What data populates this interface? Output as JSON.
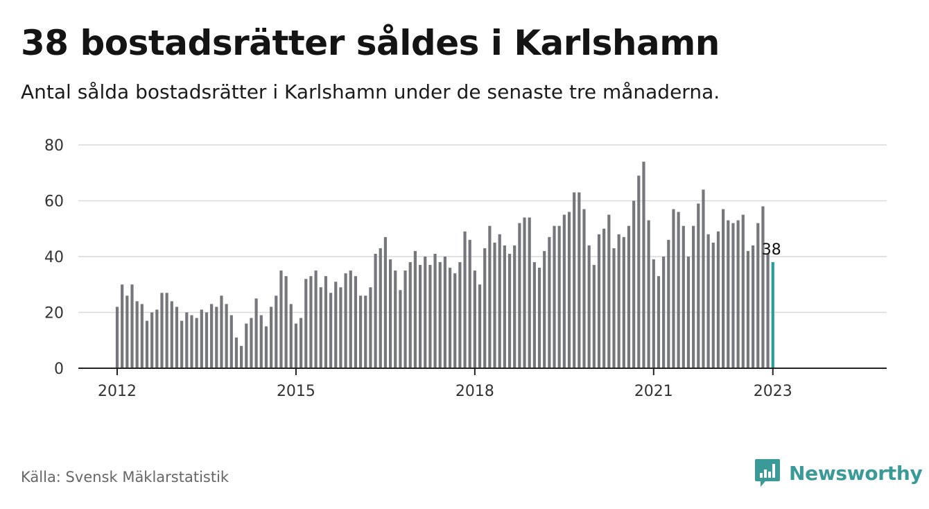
{
  "title": "38 bostadsrätter såldes i Karlshamn",
  "subtitle": "Antal sålda bostadsrätter i Karlshamn under de senaste tre månaderna.",
  "source": "Källa: Svensk Mäklarstatistik",
  "brand": {
    "name": "Newsworthy",
    "logo_icon": "newsworthy-logo-icon",
    "color": "#3a9a97"
  },
  "chart_data": {
    "type": "bar",
    "x_start": "2012-01",
    "x_end": "2023-01",
    "x_ticks": [
      "2012",
      "2015",
      "2018",
      "2021",
      "2023"
    ],
    "y_ticks": [
      0,
      20,
      40,
      60,
      80
    ],
    "ylim": [
      0,
      80
    ],
    "grid": true,
    "bar_color": "#76767d",
    "highlight_color": "#2a9d96",
    "highlight_label": "38",
    "values": [
      22,
      30,
      26,
      30,
      24,
      23,
      17,
      20,
      21,
      27,
      27,
      24,
      22,
      17,
      20,
      19,
      18,
      21,
      20,
      23,
      22,
      26,
      23,
      19,
      11,
      8,
      16,
      18,
      25,
      19,
      15,
      22,
      26,
      35,
      33,
      23,
      16,
      18,
      32,
      33,
      35,
      29,
      33,
      27,
      31,
      29,
      34,
      35,
      33,
      26,
      26,
      29,
      41,
      43,
      47,
      39,
      35,
      28,
      35,
      38,
      42,
      37,
      40,
      37,
      41,
      38,
      40,
      36,
      34,
      38,
      49,
      46,
      35,
      30,
      43,
      51,
      45,
      48,
      44,
      41,
      44,
      52,
      54,
      54,
      38,
      36,
      42,
      47,
      51,
      51,
      55,
      56,
      63,
      63,
      57,
      44,
      37,
      48,
      50,
      55,
      43,
      48,
      47,
      51,
      60,
      69,
      74,
      53,
      39,
      33,
      40,
      46,
      57,
      56,
      51,
      40,
      51,
      59,
      64,
      48,
      45,
      49,
      57,
      53,
      52,
      53,
      55,
      42,
      44,
      52,
      58,
      41,
      38
    ]
  }
}
